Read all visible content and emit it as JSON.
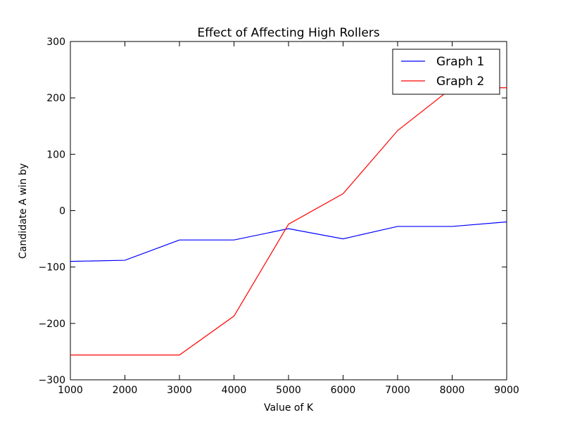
{
  "chart_data": {
    "type": "line",
    "title": "Effect of Affecting High Rollers",
    "xlabel": "Value of K",
    "ylabel": "Candidate A win by",
    "xlim": [
      1000,
      9000
    ],
    "ylim": [
      -300,
      300
    ],
    "x_ticks": [
      1000,
      2000,
      3000,
      4000,
      5000,
      6000,
      7000,
      8000,
      9000
    ],
    "y_ticks": [
      -300,
      -200,
      -100,
      0,
      100,
      200,
      300
    ],
    "x_tick_labels": [
      "1000",
      "2000",
      "3000",
      "4000",
      "5000",
      "6000",
      "7000",
      "8000",
      "9000"
    ],
    "y_tick_labels": [
      "−300",
      "−200",
      "−100",
      "0",
      "100",
      "200",
      "300"
    ],
    "x": [
      1000,
      2000,
      3000,
      4000,
      5000,
      6000,
      7000,
      8000,
      9000
    ],
    "series": [
      {
        "name": "Graph 1",
        "color": "#0000ff",
        "values": [
          -90,
          -88,
          -52,
          -52,
          -32,
          -50,
          -28,
          -28,
          -20
        ]
      },
      {
        "name": "Graph 2",
        "color": "#ff0000",
        "values": [
          -256,
          -256,
          -256,
          -187,
          -24,
          30,
          142,
          218,
          218
        ]
      }
    ],
    "grid": false,
    "legend_position": "top-right"
  }
}
